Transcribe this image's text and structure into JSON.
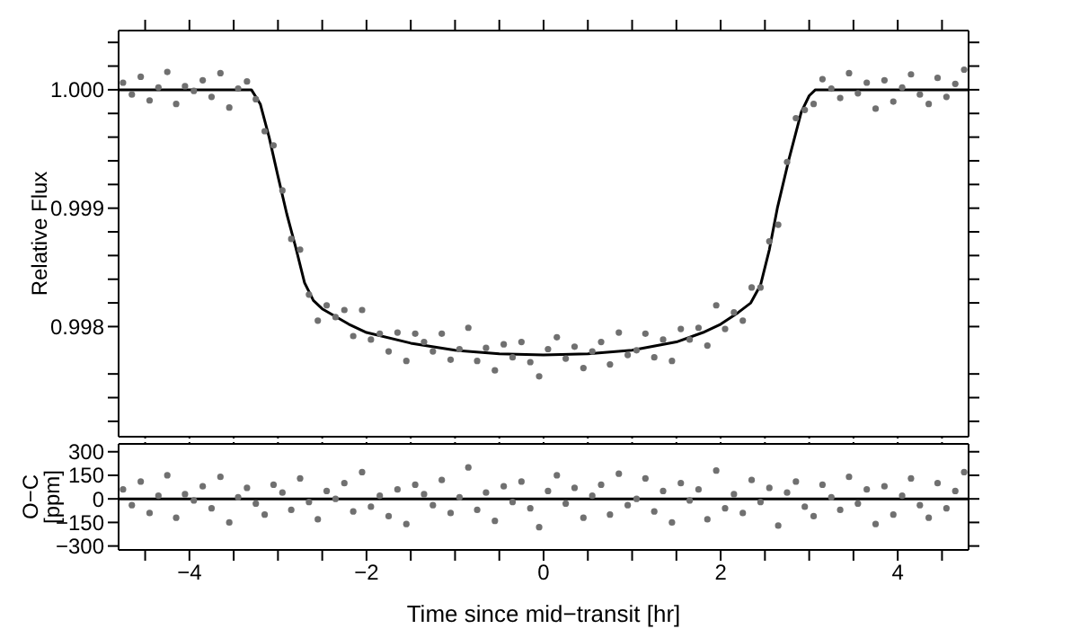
{
  "chart_data": [
    {
      "type": "scatter",
      "ylabel": "Relative Flux",
      "xlim": [
        -4.8,
        4.8
      ],
      "xticks": [
        {
          "value": -4.5,
          "label": null
        },
        {
          "value": -4,
          "label": null
        },
        {
          "value": -3.5,
          "label": null
        },
        {
          "value": -3,
          "label": null
        },
        {
          "value": -2.5,
          "label": null
        },
        {
          "value": -2,
          "label": null
        },
        {
          "value": -1.5,
          "label": null
        },
        {
          "value": -1,
          "label": null
        },
        {
          "value": -0.5,
          "label": null
        },
        {
          "value": 0,
          "label": null
        },
        {
          "value": 0.5,
          "label": null
        },
        {
          "value": 1,
          "label": null
        },
        {
          "value": 1.5,
          "label": null
        },
        {
          "value": 2,
          "label": null
        },
        {
          "value": 2.5,
          "label": null
        },
        {
          "value": 3,
          "label": null
        },
        {
          "value": 3.5,
          "label": null
        },
        {
          "value": 4,
          "label": null
        },
        {
          "value": 4.5,
          "label": null
        }
      ],
      "ylim": [
        0.99707,
        1.0005
      ],
      "yticks": [
        {
          "value": 0.9972,
          "label": null
        },
        {
          "value": 0.9974,
          "label": null
        },
        {
          "value": 0.9976,
          "label": null
        },
        {
          "value": 0.998,
          "label": "0.998"
        },
        {
          "value": 0.9982,
          "label": null
        },
        {
          "value": 0.9984,
          "label": null
        },
        {
          "value": 0.9986,
          "label": null
        },
        {
          "value": 0.9988,
          "label": null
        },
        {
          "value": 0.999,
          "label": "0.999"
        },
        {
          "value": 0.9992,
          "label": null
        },
        {
          "value": 0.9994,
          "label": null
        },
        {
          "value": 0.9996,
          "label": null
        },
        {
          "value": 0.9998,
          "label": null
        },
        {
          "value": 1.0,
          "label": "1.000"
        },
        {
          "value": 1.0002,
          "label": null
        },
        {
          "value": 1.0004,
          "label": null
        }
      ],
      "tick_labels": "y",
      "series": [
        {
          "type": "scatter",
          "color": "#707070",
          "x": [
            -4.75,
            -4.65,
            -4.55,
            -4.45,
            -4.35,
            -4.25,
            -4.15,
            -4.05,
            -3.95,
            -3.85,
            -3.75,
            -3.65,
            -3.55,
            -3.45,
            -3.35,
            -3.25,
            -3.15,
            -3.05,
            -2.95,
            -2.85,
            -2.75,
            -2.65,
            -2.55,
            -2.45,
            -2.35,
            -2.25,
            -2.15,
            -2.05,
            -1.95,
            -1.85,
            -1.75,
            -1.65,
            -1.55,
            -1.45,
            -1.35,
            -1.25,
            -1.15,
            -1.05,
            -0.95,
            -0.85,
            -0.75,
            -0.65,
            -0.55,
            -0.45,
            -0.35,
            -0.25,
            -0.15,
            -0.05,
            0.05,
            0.15,
            0.25,
            0.35,
            0.45,
            0.55,
            0.65,
            0.75,
            0.85,
            0.95,
            1.05,
            1.15,
            1.25,
            1.35,
            1.45,
            1.55,
            1.65,
            1.75,
            1.85,
            1.95,
            2.05,
            2.15,
            2.25,
            2.35,
            2.45,
            2.55,
            2.65,
            2.75,
            2.85,
            2.95,
            3.05,
            3.15,
            3.25,
            3.35,
            3.45,
            3.55,
            3.65,
            3.75,
            3.85,
            3.95,
            4.05,
            4.15,
            4.25,
            4.35,
            4.45,
            4.55,
            4.65,
            4.75
          ],
          "values": [
            1.00006,
            0.99996,
            1.00011,
            0.99991,
            1.00002,
            1.00015,
            0.99988,
            1.00003,
            0.99999,
            1.00008,
            0.99994,
            1.00014,
            0.99985,
            1.00001,
            1.00007,
            0.99992,
            0.99965,
            0.99953,
            0.99915,
            0.99874,
            0.99865,
            0.99827,
            0.99805,
            0.99818,
            0.99808,
            0.99814,
            0.99792,
            0.99814,
            0.99789,
            0.99794,
            0.99779,
            0.99795,
            0.99771,
            0.99794,
            0.99787,
            0.99779,
            0.99794,
            0.99772,
            0.99781,
            0.99799,
            0.99771,
            0.99782,
            0.99763,
            0.99785,
            0.99774,
            0.99787,
            0.9977,
            0.99758,
            0.99781,
            0.99791,
            0.99773,
            0.99783,
            0.99765,
            0.99779,
            0.99787,
            0.99768,
            0.99795,
            0.99776,
            0.9978,
            0.99794,
            0.99774,
            0.99789,
            0.99771,
            0.99798,
            0.99789,
            0.99799,
            0.99784,
            0.99818,
            0.99798,
            0.99812,
            0.99805,
            0.99833,
            0.99833,
            0.99872,
            0.99886,
            0.99939,
            0.99976,
            0.99983,
            0.99988,
            1.00009,
            1.00001,
            0.99993,
            1.00014,
            0.99997,
            1.00006,
            0.99984,
            1.00008,
            0.9999,
            1.00002,
            1.00013,
            0.99996,
            0.99988,
            1.0001,
            0.99994,
            1.00005,
            1.00017
          ]
        },
        {
          "type": "line",
          "color": "#000000",
          "x": [
            -4.8,
            -3.3,
            -3.2,
            -3.1,
            -3.0,
            -2.9,
            -2.8,
            -2.7,
            -2.6,
            -2.5,
            -2.2,
            -2.0,
            -1.5,
            -1.0,
            -0.5,
            0,
            0.5,
            1.0,
            1.5,
            1.8,
            2.0,
            2.2,
            2.34,
            2.45,
            2.55,
            2.64,
            2.77,
            2.91,
            3.0,
            3.07,
            4.8
          ],
          "values": [
            1,
            1,
            0.99988,
            0.9996,
            0.99927,
            0.99895,
            0.99867,
            0.99837,
            0.99822,
            0.99815,
            0.99802,
            0.99795,
            0.99786,
            0.9978,
            0.99777,
            0.99776,
            0.99777,
            0.9978,
            0.99787,
            0.99795,
            0.99802,
            0.99812,
            0.9982,
            0.99835,
            0.99865,
            0.999,
            0.99941,
            0.99981,
            0.99995,
            1,
            1
          ]
        }
      ]
    },
    {
      "type": "scatter",
      "xlabel": "Time since mid−transit [hr]",
      "ylabel": "O−C [ppm]",
      "xlim": [
        -4.8,
        4.8
      ],
      "xticks": [
        {
          "value": -4.5,
          "label": null
        },
        {
          "value": -4,
          "label": "−4"
        },
        {
          "value": -3.5,
          "label": null
        },
        {
          "value": -3,
          "label": null
        },
        {
          "value": -2.5,
          "label": null
        },
        {
          "value": -2,
          "label": "−2"
        },
        {
          "value": -1.5,
          "label": null
        },
        {
          "value": -1,
          "label": null
        },
        {
          "value": -0.5,
          "label": null
        },
        {
          "value": 0,
          "label": "0"
        },
        {
          "value": 0.5,
          "label": null
        },
        {
          "value": 1,
          "label": null
        },
        {
          "value": 1.5,
          "label": null
        },
        {
          "value": 2,
          "label": "2"
        },
        {
          "value": 2.5,
          "label": null
        },
        {
          "value": 3,
          "label": null
        },
        {
          "value": 3.5,
          "label": null
        },
        {
          "value": 4,
          "label": "4"
        },
        {
          "value": 4.5,
          "label": null
        }
      ],
      "ylim": [
        -325,
        350
      ],
      "yticks": [
        {
          "value": -300,
          "label": "−300"
        },
        {
          "value": -150,
          "label": "−150"
        },
        0,
        150,
        300
      ],
      "ref_lines": [
        {
          "axis": "y",
          "value": 0,
          "color": "#000000"
        }
      ],
      "series": [
        {
          "type": "scatter",
          "color": "#707070",
          "x": [
            -4.75,
            -4.65,
            -4.55,
            -4.45,
            -4.35,
            -4.25,
            -4.15,
            -4.05,
            -3.95,
            -3.85,
            -3.75,
            -3.65,
            -3.55,
            -3.45,
            -3.35,
            -3.25,
            -3.15,
            -3.05,
            -2.95,
            -2.85,
            -2.75,
            -2.65,
            -2.55,
            -2.45,
            -2.35,
            -2.25,
            -2.15,
            -2.05,
            -1.95,
            -1.85,
            -1.75,
            -1.65,
            -1.55,
            -1.45,
            -1.35,
            -1.25,
            -1.15,
            -1.05,
            -0.95,
            -0.85,
            -0.75,
            -0.65,
            -0.55,
            -0.45,
            -0.35,
            -0.25,
            -0.15,
            -0.05,
            0.05,
            0.15,
            0.25,
            0.35,
            0.45,
            0.55,
            0.65,
            0.75,
            0.85,
            0.95,
            1.05,
            1.15,
            1.25,
            1.35,
            1.45,
            1.55,
            1.65,
            1.75,
            1.85,
            1.95,
            2.05,
            2.15,
            2.25,
            2.35,
            2.45,
            2.55,
            2.65,
            2.75,
            2.85,
            2.95,
            3.05,
            3.15,
            3.25,
            3.35,
            3.45,
            3.55,
            3.65,
            3.75,
            3.85,
            3.95,
            4.05,
            4.15,
            4.25,
            4.35,
            4.45,
            4.55,
            4.65,
            4.75
          ],
          "values": [
            60,
            -40,
            110,
            -90,
            20,
            150,
            -120,
            30,
            -10,
            80,
            -60,
            140,
            -150,
            10,
            70,
            -30,
            -100,
            90,
            40,
            -70,
            130,
            -20,
            -130,
            50,
            0,
            100,
            -80,
            170,
            -50,
            20,
            -110,
            60,
            -160,
            90,
            30,
            -40,
            120,
            -90,
            10,
            200,
            -70,
            40,
            -140,
            80,
            -20,
            110,
            -60,
            -180,
            50,
            150,
            -30,
            70,
            -120,
            20,
            90,
            -100,
            160,
            -40,
            0,
            130,
            -80,
            50,
            -150,
            100,
            -10,
            60,
            -130,
            180,
            -60,
            30,
            -90,
            120,
            -20,
            70,
            -170,
            40,
            110,
            -50,
            -110,
            90,
            10,
            -70,
            140,
            -30,
            60,
            -160,
            80,
            -100,
            20,
            130,
            -40,
            -120,
            100,
            -60,
            50,
            170
          ]
        }
      ]
    }
  ]
}
